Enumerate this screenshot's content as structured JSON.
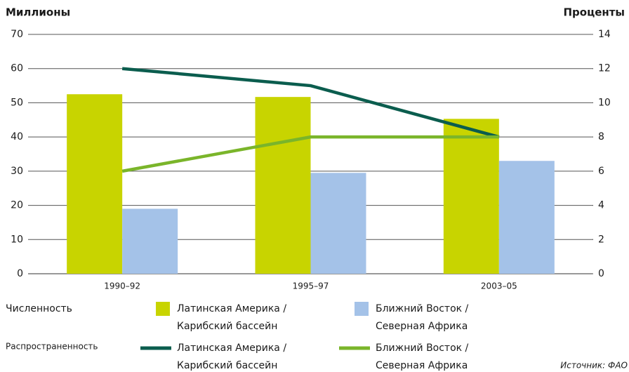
{
  "chart_data": {
    "type": "bar_line",
    "ylabel": "Миллионы",
    "y2label": "Проценты",
    "categories": [
      "1990–92",
      "1995–97",
      "2003–05"
    ],
    "ylim": [
      0,
      70
    ],
    "yticks": [
      0,
      10,
      20,
      30,
      40,
      50,
      60,
      70
    ],
    "y2lim": [
      0,
      14
    ],
    "y2ticks": [
      0,
      2,
      4,
      6,
      8,
      10,
      12,
      14
    ],
    "legend_groups": [
      "Численность",
      "Распространенность"
    ],
    "series": [
      {
        "name": "Латинская Америка /\nКарибский бассейн",
        "type": "bar",
        "color": "#c8d400",
        "values": [
          52.5,
          51.7,
          45.3
        ]
      },
      {
        "name": "Ближний Восток /\nСеверная Африка",
        "type": "bar",
        "color": "#a4c2e8",
        "values": [
          19,
          29.5,
          33
        ]
      },
      {
        "name": "Латинская Америка /\nКарибский бассейн",
        "type": "line",
        "axis": "y2",
        "color": "#0b5d4e",
        "values": [
          12,
          11,
          8
        ]
      },
      {
        "name": "Ближний Восток /\nСеверная Африка",
        "type": "line",
        "axis": "y2",
        "color": "#7ab52a",
        "values": [
          6,
          8,
          8
        ]
      }
    ],
    "source": "Источник: ФАО"
  }
}
